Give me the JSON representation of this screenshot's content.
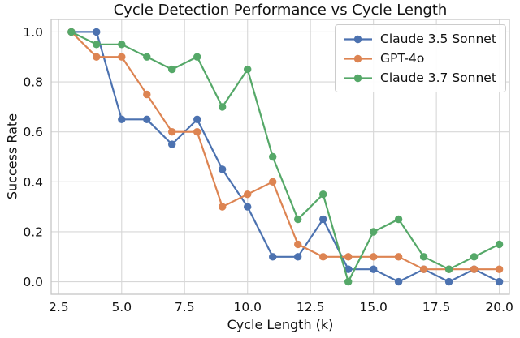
{
  "chart_data": {
    "type": "line",
    "title": "Cycle Detection Performance vs Cycle Length",
    "xlabel": "Cycle Length (k)",
    "ylabel": "Success Rate",
    "x": [
      3,
      4,
      5,
      6,
      7,
      8,
      9,
      10,
      11,
      12,
      13,
      14,
      15,
      16,
      17,
      18,
      19,
      20
    ],
    "series": [
      {
        "name": "Claude 3.5 Sonnet",
        "color": "#4C72B0",
        "values": [
          1.0,
          1.0,
          0.65,
          0.65,
          0.55,
          0.65,
          0.45,
          0.3,
          0.1,
          0.1,
          0.25,
          0.05,
          0.05,
          0.0,
          0.05,
          0.0,
          0.05,
          0.0
        ]
      },
      {
        "name": "GPT-4o",
        "color": "#DD8452",
        "values": [
          1.0,
          0.9,
          0.9,
          0.75,
          0.6,
          0.6,
          0.3,
          0.35,
          0.4,
          0.15,
          0.1,
          0.1,
          0.1,
          0.1,
          0.05,
          0.05,
          0.05,
          0.05
        ]
      },
      {
        "name": "Claude 3.7 Sonnet",
        "color": "#55A868",
        "values": [
          1.0,
          0.95,
          0.95,
          0.9,
          0.85,
          0.9,
          0.7,
          0.85,
          0.5,
          0.25,
          0.35,
          0.0,
          0.2,
          0.25,
          0.1,
          0.05,
          0.1,
          0.15
        ]
      }
    ],
    "xlim": [
      2.2,
      20.4
    ],
    "ylim": [
      -0.05,
      1.05
    ],
    "xticks": [
      2.5,
      5.0,
      7.5,
      10.0,
      12.5,
      15.0,
      17.5,
      20.0
    ],
    "xtick_labels": [
      "2.5",
      "5.0",
      "7.5",
      "10.0",
      "12.5",
      "15.0",
      "17.5",
      "20.0"
    ],
    "yticks": [
      0.0,
      0.2,
      0.4,
      0.6,
      0.8,
      1.0
    ],
    "ytick_labels": [
      "0.0",
      "0.2",
      "0.4",
      "0.6",
      "0.8",
      "1.0"
    ],
    "grid": true,
    "grid_color": "#d7d7d7",
    "spine_color": "#c6c6c6",
    "legend_position": "upper right",
    "marker": "circle"
  }
}
